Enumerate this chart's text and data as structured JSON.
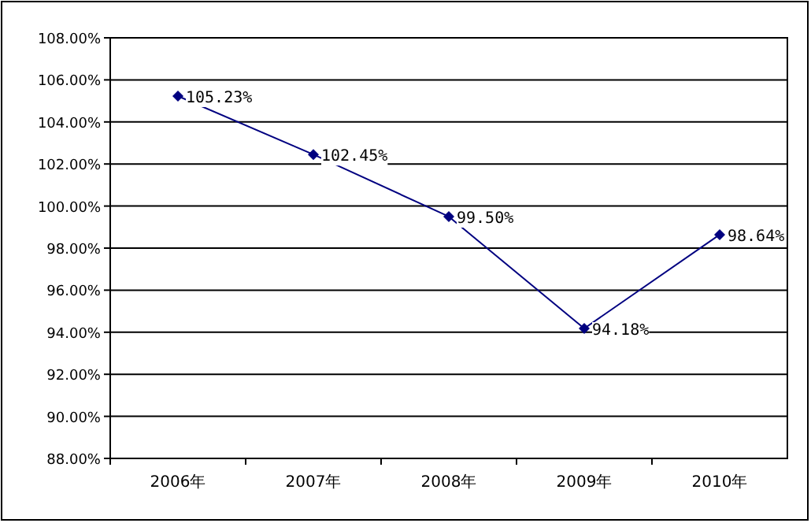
{
  "chart_data": {
    "type": "line",
    "categories": [
      "2006年",
      "2007年",
      "2008年",
      "2009年",
      "2010年"
    ],
    "series": [
      {
        "color": "#000080",
        "values": [
          105.23,
          102.45,
          99.5,
          94.18,
          98.64
        ],
        "value_labels": [
          "105.23%",
          "102.45%",
          "99.50%",
          "94.18%",
          "98.64%"
        ]
      }
    ],
    "ylim": [
      88,
      108
    ],
    "yticks": [
      {
        "value": 88,
        "label": "88.00%"
      },
      {
        "value": 90,
        "label": "90.00%"
      },
      {
        "value": 92,
        "label": "92.00%"
      },
      {
        "value": 94,
        "label": "94.00%"
      },
      {
        "value": 96,
        "label": "96.00%"
      },
      {
        "value": 98,
        "label": "98.00%"
      },
      {
        "value": 100,
        "label": "100.00%"
      },
      {
        "value": 102,
        "label": "102.00%"
      },
      {
        "value": 104,
        "label": "104.00%"
      },
      {
        "value": 106,
        "label": "106.00%"
      },
      {
        "value": 108,
        "label": "108.00%"
      }
    ],
    "grid": "y",
    "marker": "diamond",
    "line_style": "solid"
  }
}
